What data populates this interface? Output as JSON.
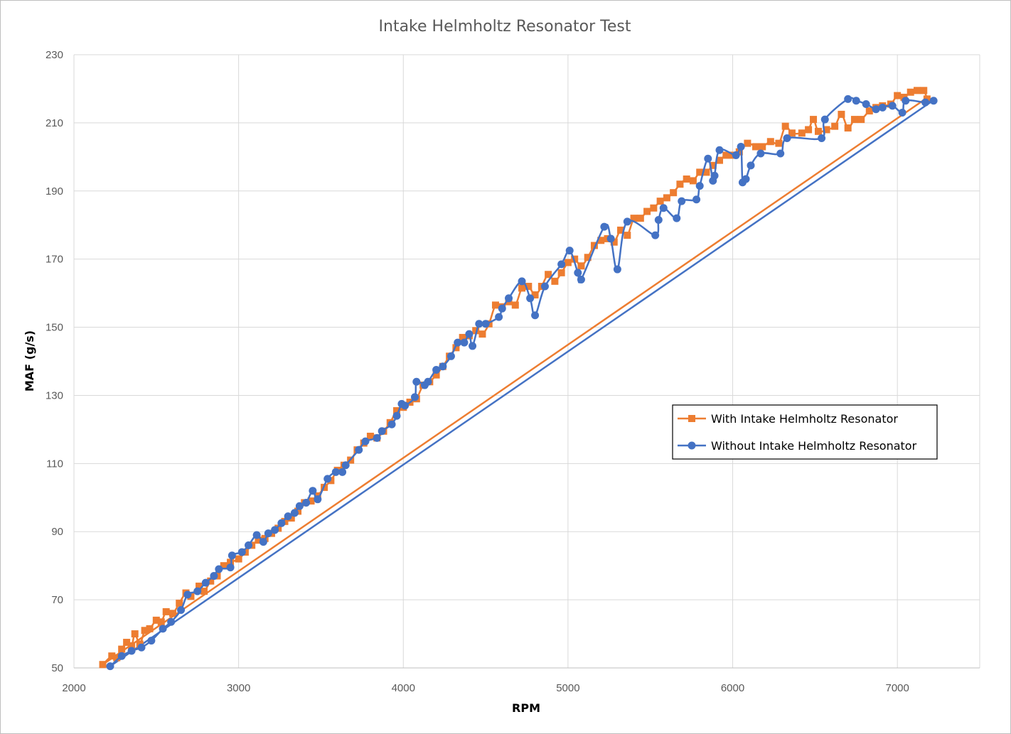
{
  "chart_data": {
    "type": "scatter",
    "title": "Intake Helmholtz Resonator Test",
    "xlabel": "RPM",
    "ylabel": "MAF (g/s)",
    "xlim": [
      2000,
      7500
    ],
    "ylim": [
      50,
      230
    ],
    "xticks": [
      "2000",
      "3000",
      "4000",
      "5000",
      "6000",
      "7000"
    ],
    "yticks": [
      "50",
      "70",
      "90",
      "110",
      "130",
      "150",
      "170",
      "190",
      "210",
      "230"
    ],
    "grid": true,
    "legend_position": "right",
    "series": [
      {
        "name": "With Intake Helmholtz Resonator",
        "color": "#ED7D31",
        "marker": "square",
        "points": [
          [
            2175,
            51
          ],
          [
            2230,
            53.5
          ],
          [
            2260,
            53
          ],
          [
            2290,
            55.5
          ],
          [
            2320,
            57.5
          ],
          [
            2350,
            56.5
          ],
          [
            2370,
            60
          ],
          [
            2400,
            57
          ],
          [
            2430,
            61
          ],
          [
            2460,
            61.5
          ],
          [
            2500,
            64
          ],
          [
            2530,
            63.5
          ],
          [
            2560,
            66.5
          ],
          [
            2600,
            66
          ],
          [
            2640,
            69
          ],
          [
            2680,
            72
          ],
          [
            2710,
            71
          ],
          [
            2760,
            74
          ],
          [
            2790,
            72.5
          ],
          [
            2830,
            75.5
          ],
          [
            2870,
            77
          ],
          [
            2910,
            80
          ],
          [
            2950,
            81
          ],
          [
            3000,
            82
          ],
          [
            3040,
            84
          ],
          [
            3080,
            86
          ],
          [
            3120,
            87.5
          ],
          [
            3160,
            88
          ],
          [
            3200,
            89.5
          ],
          [
            3240,
            91
          ],
          [
            3280,
            93
          ],
          [
            3320,
            94
          ],
          [
            3360,
            96
          ],
          [
            3400,
            98.5
          ],
          [
            3440,
            99
          ],
          [
            3480,
            100.5
          ],
          [
            3520,
            103
          ],
          [
            3560,
            105
          ],
          [
            3600,
            108
          ],
          [
            3640,
            109.5
          ],
          [
            3680,
            111
          ],
          [
            3720,
            114
          ],
          [
            3760,
            116
          ],
          [
            3800,
            118
          ],
          [
            3840,
            117.5
          ],
          [
            3880,
            119.5
          ],
          [
            3920,
            122
          ],
          [
            3960,
            125.5
          ],
          [
            4000,
            126.5
          ],
          [
            4040,
            128
          ],
          [
            4080,
            129
          ],
          [
            4120,
            133
          ],
          [
            4160,
            134
          ],
          [
            4200,
            136
          ],
          [
            4240,
            138.5
          ],
          [
            4280,
            141.5
          ],
          [
            4320,
            144
          ],
          [
            4360,
            147
          ],
          [
            4400,
            147.5
          ],
          [
            4440,
            149
          ],
          [
            4480,
            148
          ],
          [
            4520,
            151
          ],
          [
            4560,
            156.5
          ],
          [
            4600,
            156
          ],
          [
            4640,
            157.5
          ],
          [
            4680,
            156.5
          ],
          [
            4720,
            161.5
          ],
          [
            4760,
            162
          ],
          [
            4800,
            159.5
          ],
          [
            4840,
            162
          ],
          [
            4880,
            165.5
          ],
          [
            4920,
            163.5
          ],
          [
            4960,
            166
          ],
          [
            5000,
            169
          ],
          [
            5040,
            170
          ],
          [
            5080,
            168
          ],
          [
            5120,
            170.5
          ],
          [
            5160,
            174
          ],
          [
            5200,
            175.5
          ],
          [
            5240,
            176
          ],
          [
            5280,
            175
          ],
          [
            5320,
            178.5
          ],
          [
            5360,
            177
          ],
          [
            5400,
            182
          ],
          [
            5440,
            182
          ],
          [
            5480,
            184
          ],
          [
            5520,
            185
          ],
          [
            5560,
            187
          ],
          [
            5600,
            188
          ],
          [
            5640,
            189.5
          ],
          [
            5680,
            192
          ],
          [
            5720,
            193.5
          ],
          [
            5760,
            193
          ],
          [
            5800,
            195.5
          ],
          [
            5840,
            195.5
          ],
          [
            5880,
            197.5
          ],
          [
            5920,
            199
          ],
          [
            5960,
            200.5
          ],
          [
            6000,
            200.5
          ],
          [
            6040,
            201.5
          ],
          [
            6090,
            204
          ],
          [
            6140,
            203
          ],
          [
            6180,
            203
          ],
          [
            6230,
            204.5
          ],
          [
            6280,
            204
          ],
          [
            6320,
            209
          ],
          [
            6360,
            207
          ],
          [
            6420,
            207
          ],
          [
            6460,
            208
          ],
          [
            6490,
            211
          ],
          [
            6520,
            207.5
          ],
          [
            6570,
            208
          ],
          [
            6620,
            209
          ],
          [
            6660,
            212.5
          ],
          [
            6700,
            208.5
          ],
          [
            6740,
            211
          ],
          [
            6780,
            211
          ],
          [
            6830,
            213.5
          ],
          [
            6870,
            214.5
          ],
          [
            6910,
            215
          ],
          [
            6960,
            215.5
          ],
          [
            7000,
            218
          ],
          [
            7040,
            217.5
          ],
          [
            7080,
            219
          ],
          [
            7120,
            219.5
          ],
          [
            7160,
            219.5
          ],
          [
            7180,
            217
          ]
        ]
      },
      {
        "name": "Without Intake Helmholtz Resonator",
        "color": "#4472C4",
        "marker": "circle",
        "points": [
          [
            2220,
            50.5
          ],
          [
            2290,
            53.5
          ],
          [
            2350,
            55
          ],
          [
            2410,
            56
          ],
          [
            2470,
            58
          ],
          [
            2540,
            61.5
          ],
          [
            2590,
            63.5
          ],
          [
            2650,
            67
          ],
          [
            2690,
            71.5
          ],
          [
            2750,
            72.5
          ],
          [
            2800,
            75
          ],
          [
            2850,
            77
          ],
          [
            2880,
            79
          ],
          [
            2950,
            79.5
          ],
          [
            2960,
            83
          ],
          [
            3020,
            84
          ],
          [
            3060,
            86
          ],
          [
            3110,
            89
          ],
          [
            3150,
            87
          ],
          [
            3180,
            89.5
          ],
          [
            3220,
            90.5
          ],
          [
            3260,
            92.5
          ],
          [
            3300,
            94.5
          ],
          [
            3340,
            95.5
          ],
          [
            3370,
            97.5
          ],
          [
            3410,
            98.5
          ],
          [
            3450,
            102
          ],
          [
            3480,
            99.5
          ],
          [
            3540,
            105.5
          ],
          [
            3590,
            107.5
          ],
          [
            3630,
            107.5
          ],
          [
            3650,
            109.5
          ],
          [
            3730,
            114
          ],
          [
            3770,
            116.5
          ],
          [
            3840,
            117.5
          ],
          [
            3870,
            119.5
          ],
          [
            3930,
            121.5
          ],
          [
            3960,
            124
          ],
          [
            3990,
            127.5
          ],
          [
            4010,
            127
          ],
          [
            4070,
            129.5
          ],
          [
            4080,
            134
          ],
          [
            4130,
            133
          ],
          [
            4150,
            134
          ],
          [
            4200,
            137.5
          ],
          [
            4240,
            138.5
          ],
          [
            4290,
            141.5
          ],
          [
            4330,
            145.5
          ],
          [
            4370,
            145.5
          ],
          [
            4400,
            148
          ],
          [
            4420,
            144.5
          ],
          [
            4460,
            151
          ],
          [
            4500,
            151
          ],
          [
            4580,
            153
          ],
          [
            4600,
            155.5
          ],
          [
            4640,
            158.5
          ],
          [
            4720,
            163.5
          ],
          [
            4770,
            158.5
          ],
          [
            4800,
            153.5
          ],
          [
            4860,
            162
          ],
          [
            4960,
            168.5
          ],
          [
            5010,
            172.5
          ],
          [
            5060,
            166
          ],
          [
            5080,
            164
          ],
          [
            5220,
            179.5
          ],
          [
            5260,
            176
          ],
          [
            5300,
            167
          ],
          [
            5360,
            181
          ],
          [
            5530,
            177
          ],
          [
            5550,
            181.5
          ],
          [
            5580,
            185
          ],
          [
            5660,
            182
          ],
          [
            5690,
            187
          ],
          [
            5780,
            187.5
          ],
          [
            5800,
            191.5
          ],
          [
            5850,
            199.5
          ],
          [
            5880,
            193
          ],
          [
            5890,
            194.5
          ],
          [
            5920,
            202
          ],
          [
            6020,
            200.5
          ],
          [
            6050,
            203
          ],
          [
            6060,
            192.5
          ],
          [
            6080,
            193.5
          ],
          [
            6110,
            197.5
          ],
          [
            6170,
            201
          ],
          [
            6290,
            201
          ],
          [
            6330,
            205.5
          ],
          [
            6540,
            205.5
          ],
          [
            6560,
            211
          ],
          [
            6700,
            217
          ],
          [
            6750,
            216.5
          ],
          [
            6810,
            215.5
          ],
          [
            6870,
            214
          ],
          [
            6910,
            214.5
          ],
          [
            6970,
            215
          ],
          [
            7030,
            213
          ],
          [
            7050,
            216.5
          ],
          [
            7170,
            216
          ],
          [
            7220,
            216.5
          ]
        ],
        "trendline": [
          [
            2220,
            50.5
          ],
          [
            7200,
            216
          ]
        ]
      }
    ],
    "trendlines": [
      {
        "series": "With Intake Helmholtz Resonator",
        "from": [
          2175,
          51
        ],
        "to": [
          7170,
          217
        ]
      },
      {
        "series": "Without Intake Helmholtz Resonator",
        "from": [
          2220,
          50.5
        ],
        "to": [
          7200,
          216
        ]
      }
    ]
  }
}
